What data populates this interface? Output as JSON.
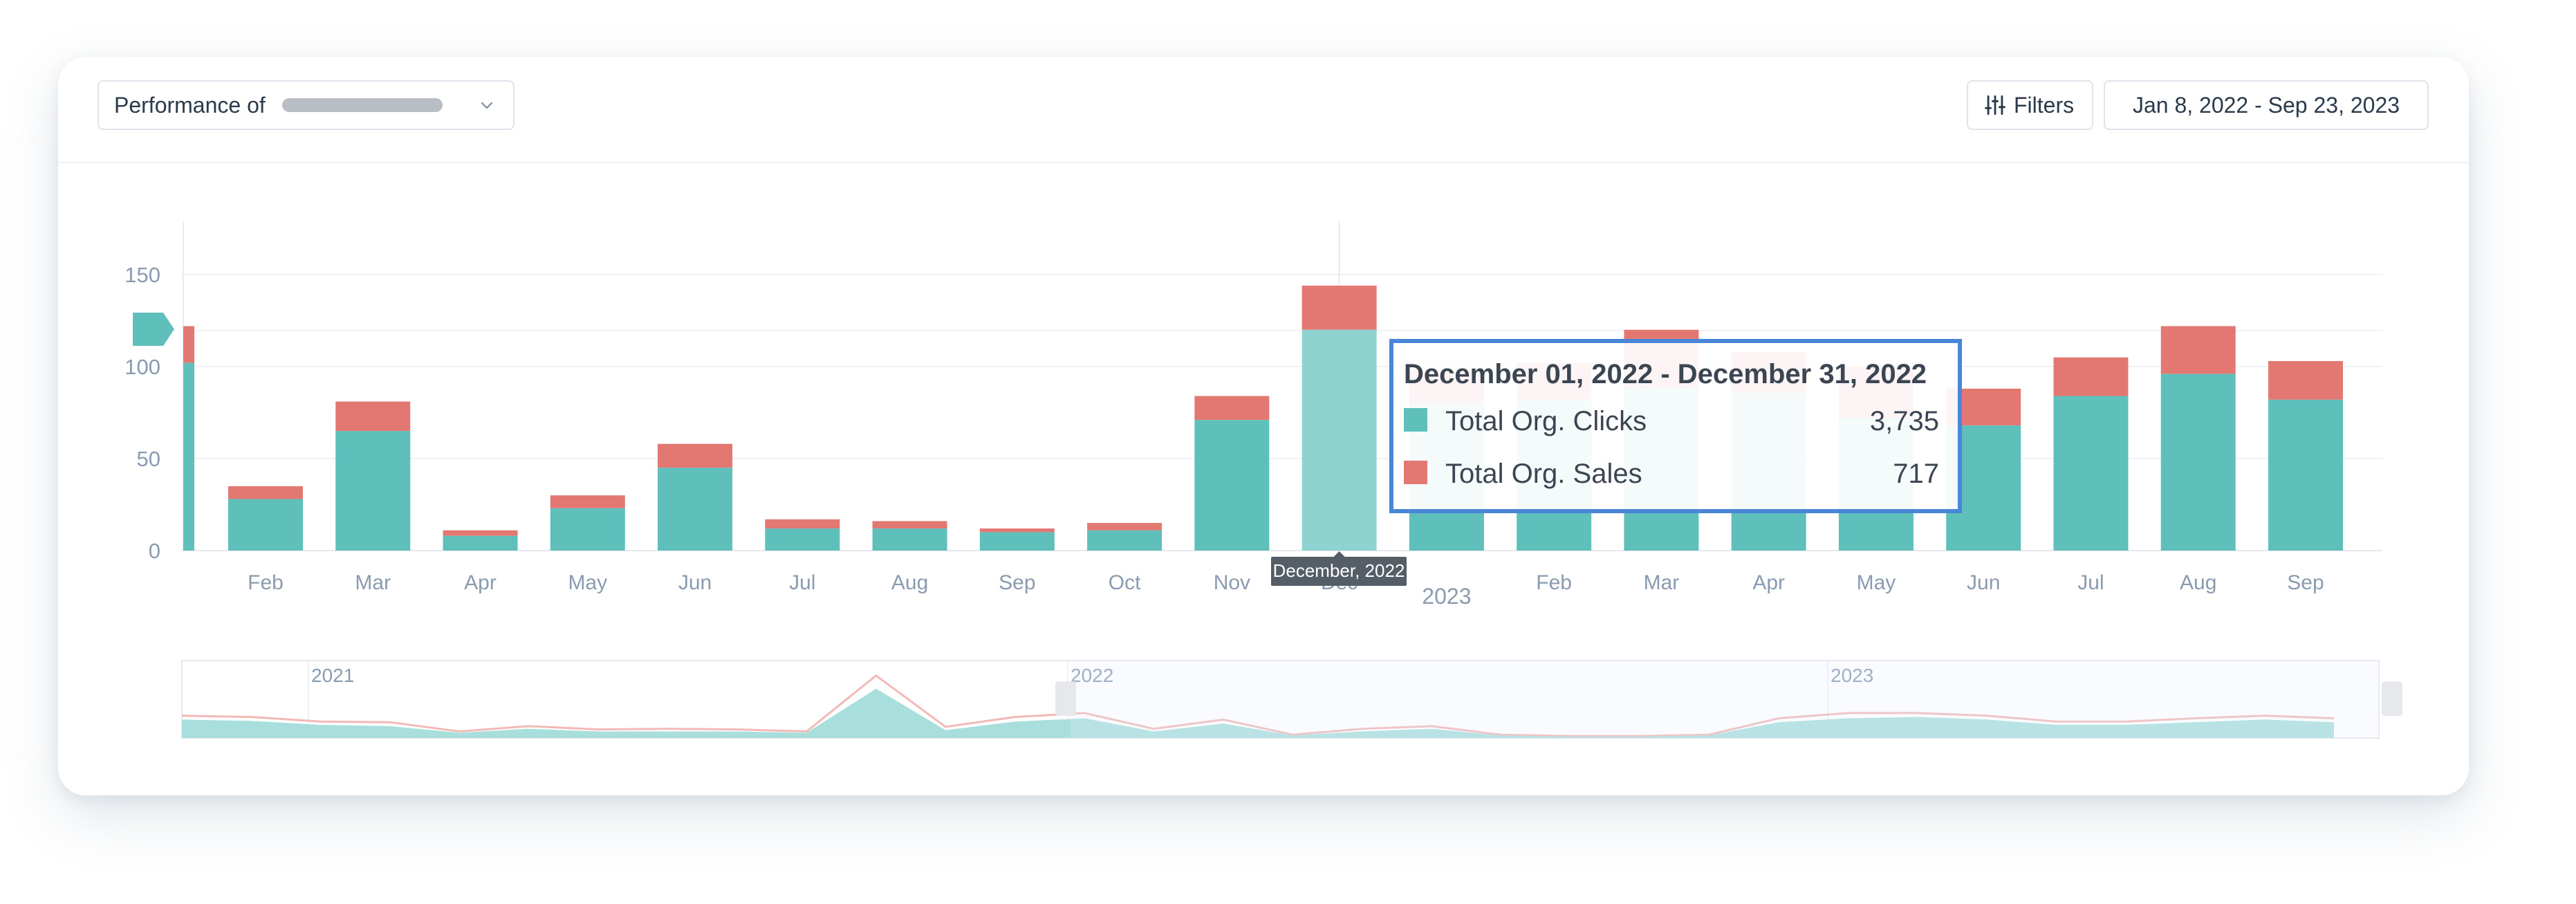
{
  "header": {
    "performance_label": "Performance of",
    "filters_label": "Filters",
    "filters_icon": "sliders-icon",
    "dropdown_icon": "chevron-down-icon",
    "date_range": "Jan 8, 2022 - Sep 23, 2023"
  },
  "colors": {
    "clicks": "#5fbfbb",
    "sales": "#e37873",
    "clicks_highlight": "#8fd3d0",
    "tooltip_border": "#4a86d8",
    "axis_text": "#8a9bb0"
  },
  "chart_data": {
    "type": "bar",
    "stacked": true,
    "title": "",
    "xlabel": "",
    "ylabel": "",
    "ylim": [
      0,
      150
    ],
    "yticks": [
      0,
      50,
      100,
      150
    ],
    "grid": true,
    "categories": [
      "Feb",
      "Mar",
      "Apr",
      "May",
      "Jun",
      "Jul",
      "Aug",
      "Sep",
      "Oct",
      "Nov",
      "Dec",
      "2023",
      "Feb",
      "Mar",
      "Apr",
      "May",
      "Jun",
      "Jul",
      "Aug",
      "Sep"
    ],
    "series": [
      {
        "name": "Total Org. Clicks",
        "values": [
          28,
          65,
          8,
          23,
          45,
          12,
          12,
          10,
          11,
          71,
          120,
          80,
          82,
          88,
          86,
          72,
          68,
          84,
          96,
          82
        ]
      },
      {
        "name": "Total Org. Sales",
        "values": [
          7,
          16,
          3,
          7,
          13,
          5,
          4,
          2,
          4,
          13,
          24,
          18,
          20,
          32,
          22,
          28,
          20,
          21,
          26,
          21
        ]
      }
    ],
    "highlighted_category": "Dec",
    "hover_label": "December, 2022",
    "tooltip": {
      "title": "December 01, 2022 - December 31, 2022",
      "rows": [
        {
          "label": "Total Org. Clicks",
          "value": "3,735"
        },
        {
          "label": "Total Org. Sales",
          "value": "717"
        }
      ]
    },
    "navigator": {
      "year_labels": [
        "2021",
        "2022",
        "2023"
      ],
      "clicks": [
        28,
        26,
        20,
        18,
        8,
        14,
        10,
        10,
        10,
        8,
        75,
        12,
        25,
        30,
        10,
        22,
        4,
        10,
        14,
        4,
        2,
        2,
        4,
        24,
        30,
        32,
        28,
        20,
        20,
        24,
        28,
        24
      ],
      "sales": [
        34,
        32,
        25,
        24,
        10,
        18,
        13,
        14,
        13,
        10,
        95,
        17,
        32,
        38,
        14,
        28,
        5,
        14,
        18,
        5,
        3,
        3,
        5,
        30,
        38,
        38,
        34,
        25,
        25,
        30,
        34,
        30
      ]
    }
  }
}
